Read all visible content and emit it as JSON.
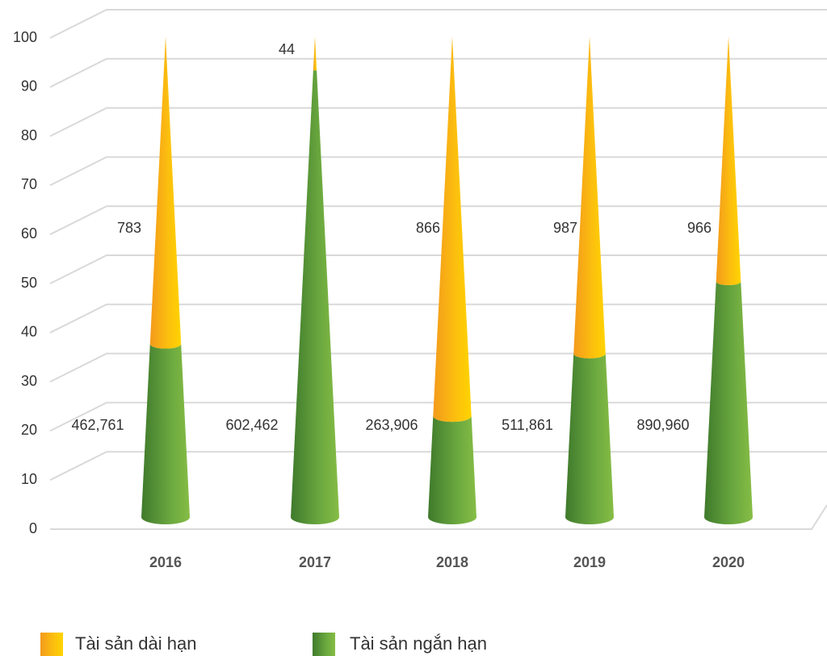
{
  "chart_data": {
    "type": "cone",
    "categories": [
      "2016",
      "2017",
      "2018",
      "2019",
      "2020"
    ],
    "series": [
      {
        "name": "Tài sản ngắn hạn",
        "color": "#5a9a38",
        "values": [
          36,
          93,
          21,
          34,
          49
        ],
        "labels": [
          "462,761",
          "602,462",
          "263,906",
          "511,861",
          "890,960"
        ]
      },
      {
        "name": "Tài sản dài hạn",
        "color": "#fbaa1b",
        "values": [
          64,
          7,
          79,
          66,
          51
        ],
        "labels": [
          "783",
          "44",
          "866",
          "987",
          "966"
        ]
      }
    ],
    "ylim": [
      0,
      100
    ],
    "yticks": [
      0,
      10,
      20,
      30,
      40,
      50,
      60,
      70,
      80,
      90,
      100
    ],
    "grid": true
  }
}
